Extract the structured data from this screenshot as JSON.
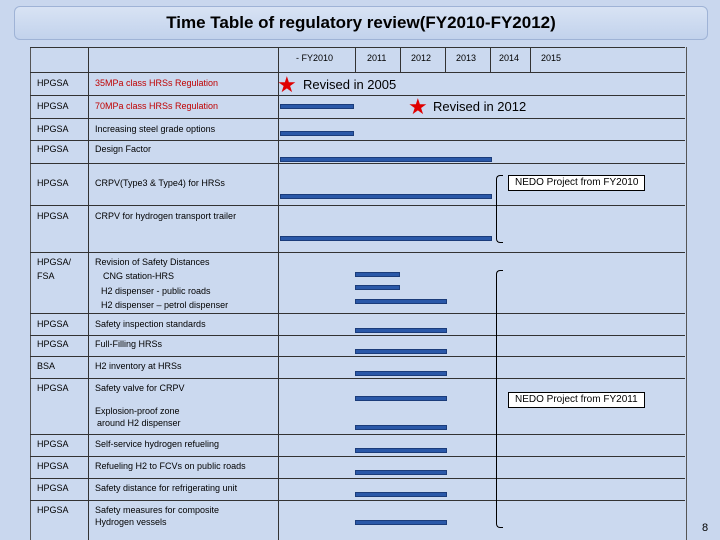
{
  "title": "Time Table of regulatory review(FY2010-FY2012)",
  "years": [
    "- FY2010",
    "2011",
    "2012",
    "2013",
    "2014",
    "2015"
  ],
  "rows": [
    {
      "org": "HPGSA",
      "item": "35MPa class HRSs Regulation"
    },
    {
      "org": "HPGSA",
      "item": "70MPa class HRSs Regulation"
    },
    {
      "org": "HPGSA",
      "item": "Increasing steel grade options"
    },
    {
      "org": "HPGSA",
      "item": "Design Factor"
    },
    {
      "org": "HPGSA",
      "item": "CRPV(Type3 & Type4) for HRSs"
    },
    {
      "org": "HPGSA",
      "item": "CRPV for hydrogen transport trailer"
    },
    {
      "org": "HPGSA/",
      "org2": "FSA",
      "item": "Revision of Safety Distances",
      "sub": [
        "CNG station-HRS",
        "H2 dispenser - public roads",
        "H2 dispenser – petrol dispenser"
      ]
    },
    {
      "org": "HPGSA",
      "item": "Safety inspection standards"
    },
    {
      "org": "HPGSA",
      "item": "Full-Filling HRSs"
    },
    {
      "org": "BSA",
      "item": "H2 inventory at HRSs"
    },
    {
      "org": "HPGSA",
      "item": "Safety valve for CRPV"
    },
    {
      "org": "",
      "item": "Explosion-proof zone",
      "sub": [
        "around H2 dispenser"
      ]
    },
    {
      "org": "HPGSA",
      "item": "Self-service hydrogen refueling"
    },
    {
      "org": "HPGSA",
      "item": "Refueling H2 to FCVs on public roads"
    },
    {
      "org": "HPGSA",
      "item": "Safety distance  for refrigerating unit"
    },
    {
      "org": "HPGSA",
      "item": "Safety measures for composite",
      "sub": [
        "Hydrogen vessels"
      ]
    }
  ],
  "notes": {
    "revised2005": "Revised in 2005",
    "revised2012": "Revised in 2012",
    "nedo2010": "NEDO Project from FY2010",
    "nedo2011": "NEDO Project from FY2011"
  },
  "page_number": "8",
  "colors": {
    "bar": "#2a58a8",
    "star": "#e00000",
    "red_text": "#c00000"
  }
}
